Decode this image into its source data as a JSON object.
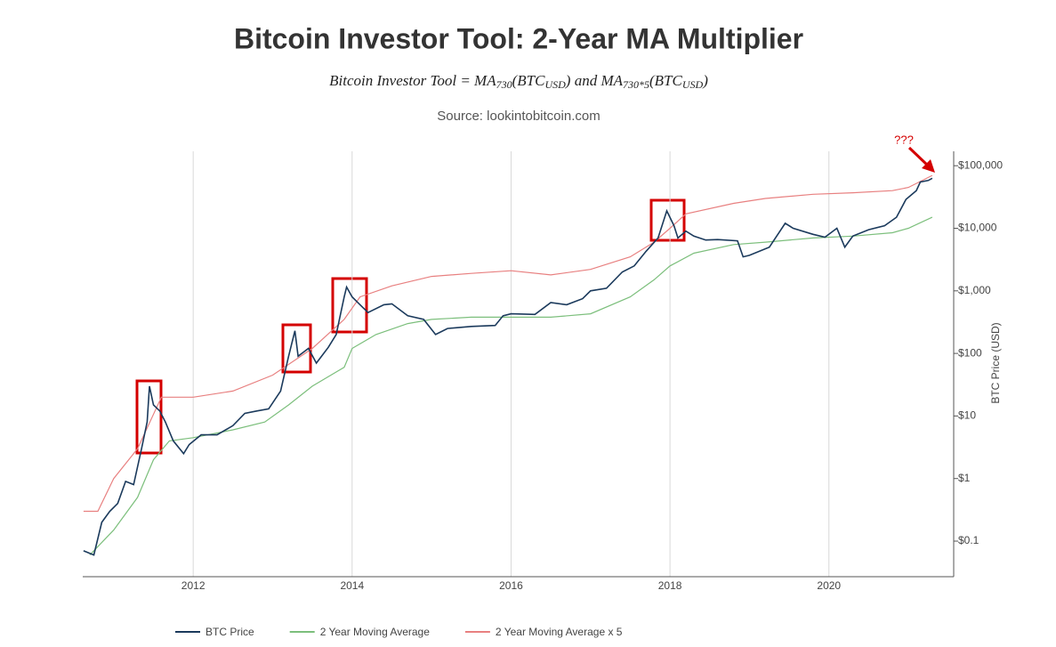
{
  "chart_data": {
    "type": "line",
    "title": "Bitcoin Investor Tool: 2-Year MA Multiplier",
    "subtitle_parts": [
      "Bitcoin Investor Tool = MA",
      "730",
      "(BTC",
      "USD",
      ") and MA",
      "730*5",
      "(BTC",
      "USD",
      ")"
    ],
    "source": "Source: lookintobitcoin.com",
    "y_label": "BTC Price (USD)",
    "log_y": true,
    "grid": true,
    "legend": "bottom",
    "xlim": [
      2010.61,
      2021.57
    ],
    "xticks": [
      2012,
      2014,
      2016,
      2018,
      2020
    ],
    "ylim": [
      0.027,
      170000
    ],
    "yticks": [
      {
        "value": 0.1,
        "label": "$0.1"
      },
      {
        "value": 1,
        "label": "$1"
      },
      {
        "value": 10,
        "label": "$10"
      },
      {
        "value": 100,
        "label": "$100"
      },
      {
        "value": 1000,
        "label": "$1,000"
      },
      {
        "value": 10000,
        "label": "$10,000"
      },
      {
        "value": 100000,
        "label": "$100,000"
      }
    ],
    "annotations": [
      {
        "text": "???"
      }
    ],
    "series": [
      {
        "name": "BTC Price",
        "color": "#1b3a5c",
        "x": [
          2010.62,
          2010.75,
          2010.85,
          2010.95,
          2011.05,
          2011.15,
          2011.25,
          2011.35,
          2011.42,
          2011.45,
          2011.5,
          2011.58,
          2011.65,
          2011.75,
          2011.88,
          2011.95,
          2012.1,
          2012.3,
          2012.5,
          2012.65,
          2012.8,
          2012.95,
          2013.1,
          2013.2,
          2013.28,
          2013.32,
          2013.45,
          2013.55,
          2013.7,
          2013.8,
          2013.9,
          2013.93,
          2014.0,
          2014.1,
          2014.2,
          2014.4,
          2014.5,
          2014.7,
          2014.9,
          2015.05,
          2015.2,
          2015.5,
          2015.8,
          2015.9,
          2016.0,
          2016.3,
          2016.5,
          2016.7,
          2016.9,
          2017.0,
          2017.2,
          2017.4,
          2017.55,
          2017.7,
          2017.85,
          2017.96,
          2018.05,
          2018.1,
          2018.2,
          2018.3,
          2018.45,
          2018.6,
          2018.85,
          2018.92,
          2019.0,
          2019.25,
          2019.45,
          2019.55,
          2019.8,
          2019.95,
          2020.1,
          2020.2,
          2020.3,
          2020.5,
          2020.7,
          2020.85,
          2020.97,
          2021.1,
          2021.15,
          2021.25,
          2021.3
        ],
        "values": [
          0.07,
          0.06,
          0.2,
          0.3,
          0.4,
          0.9,
          0.8,
          3,
          8,
          30,
          15,
          12,
          8,
          4,
          2.5,
          3.5,
          5,
          5,
          7,
          11,
          12,
          13,
          25,
          90,
          230,
          90,
          120,
          70,
          125,
          200,
          800,
          1150,
          800,
          600,
          450,
          600,
          620,
          400,
          350,
          200,
          250,
          270,
          280,
          400,
          430,
          420,
          650,
          600,
          750,
          1000,
          1100,
          2000,
          2500,
          4300,
          7000,
          19000,
          11000,
          7000,
          9000,
          7500,
          6500,
          6600,
          6300,
          3500,
          3700,
          5000,
          12000,
          10000,
          8000,
          7200,
          10000,
          5000,
          7500,
          9500,
          11000,
          15000,
          29000,
          40000,
          55000,
          58000,
          63000
        ]
      },
      {
        "name": "2 Year Moving Average",
        "color": "#7cbf7c",
        "x": [
          2010.7,
          2011.0,
          2011.3,
          2011.5,
          2011.7,
          2012.0,
          2012.5,
          2012.9,
          2013.2,
          2013.5,
          2013.9,
          2014.0,
          2014.3,
          2014.7,
          2015.0,
          2015.5,
          2016.0,
          2016.5,
          2017.0,
          2017.5,
          2017.8,
          2018.0,
          2018.3,
          2018.8,
          2019.2,
          2019.8,
          2020.3,
          2020.8,
          2021.0,
          2021.3
        ],
        "values": [
          0.06,
          0.15,
          0.5,
          2,
          4,
          4.5,
          6,
          8,
          15,
          30,
          60,
          120,
          200,
          300,
          350,
          380,
          380,
          380,
          430,
          800,
          1500,
          2500,
          4000,
          5500,
          6000,
          7000,
          7500,
          8500,
          10000,
          15000
        ]
      },
      {
        "name": "2 Year Moving Average x 5",
        "color": "#e88080",
        "x": [
          2010.62,
          2010.8,
          2011.0,
          2011.3,
          2011.6,
          2012.0,
          2012.5,
          2013.0,
          2013.5,
          2013.9,
          2014.1,
          2014.5,
          2015.0,
          2015.5,
          2016.0,
          2016.5,
          2017.0,
          2017.5,
          2017.8,
          2018.0,
          2018.2,
          2018.8,
          2019.2,
          2019.8,
          2020.3,
          2020.8,
          2021.0,
          2021.3
        ],
        "values": [
          0.3,
          0.3,
          1,
          3,
          20,
          20,
          25,
          45,
          120,
          350,
          800,
          1200,
          1700,
          1900,
          2100,
          1800,
          2200,
          3500,
          6000,
          10000,
          17000,
          25000,
          30000,
          35000,
          37000,
          40000,
          45000,
          70000
        ]
      }
    ]
  }
}
